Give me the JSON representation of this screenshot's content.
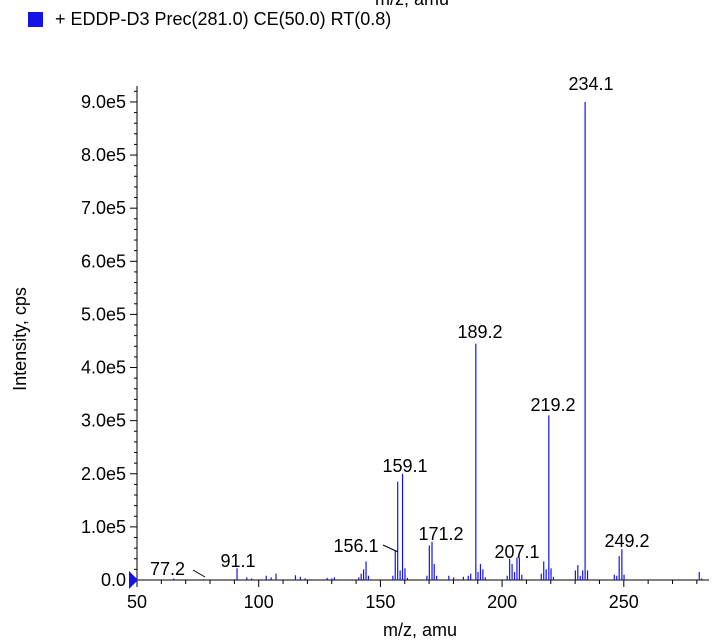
{
  "top_axis_label_fragment": "m/z, amu",
  "legend": {
    "label": "+ EDDP-D3 Prec(281.0) CE(50.0) RT(0.8)",
    "color": "#1414e6"
  },
  "chart_data": {
    "type": "bar",
    "xlabel": "m/z, amu",
    "ylabel": "Intensity, cps",
    "xlim": [
      50,
      285
    ],
    "ylim": [
      0,
      930000
    ],
    "xticks": [
      50,
      100,
      150,
      200,
      250
    ],
    "xtick_labels": [
      "50",
      "100",
      "150",
      "200",
      "250"
    ],
    "yticks": [
      0,
      100000,
      200000,
      300000,
      400000,
      500000,
      600000,
      700000,
      800000,
      900000
    ],
    "ytick_labels": [
      "0.0",
      "1.0e5",
      "2.0e5",
      "3.0e5",
      "4.0e5",
      "5.0e5",
      "6.0e5",
      "7.0e5",
      "8.0e5",
      "9.0e5"
    ],
    "series": [
      {
        "color": "#1414e6",
        "x": [
          65.1,
          77.2,
          91.1,
          95.1,
          97.1,
          103.1,
          105.1,
          107.1,
          115.1,
          117.1,
          119.1,
          128.1,
          130.1,
          131.1,
          141.1,
          142.1,
          143.1,
          144.1,
          145.1,
          155.1,
          156.1,
          157.1,
          158.1,
          159.1,
          160.1,
          161.1,
          169.1,
          170.1,
          171.2,
          172.1,
          173.1,
          178.1,
          180.1,
          184.1,
          186.1,
          187.1,
          189.2,
          190.1,
          191.1,
          192.1,
          193.1,
          202.1,
          203.1,
          204.1,
          205.1,
          206.1,
          207.1,
          208.1,
          216.1,
          217.1,
          218.1,
          219.2,
          220.1,
          221.1,
          230.1,
          231.1,
          232.1,
          233.1,
          234.1,
          235.1,
          246.1,
          247.1,
          248.1,
          249.2,
          250.1,
          281.0,
          282.0
        ],
        "values": [
          3000,
          1500,
          22000,
          5000,
          3000,
          8000,
          5000,
          12000,
          9000,
          6000,
          3000,
          4000,
          3000,
          5000,
          5000,
          12000,
          20000,
          35000,
          8000,
          8000,
          55000,
          185000,
          18000,
          200000,
          22000,
          4000,
          8000,
          65000,
          72000,
          30000,
          8000,
          8000,
          5000,
          6000,
          8000,
          12000,
          445000,
          15000,
          30000,
          20000,
          5000,
          8000,
          40000,
          30000,
          15000,
          42000,
          42000,
          10000,
          12000,
          35000,
          20000,
          310000,
          22000,
          6000,
          18000,
          28000,
          8000,
          18000,
          900000,
          18000,
          10000,
          8000,
          45000,
          58000,
          10000,
          15000,
          3000
        ]
      }
    ],
    "peak_labels": [
      "77.2",
      "91.1",
      "156.1",
      "159.1",
      "171.2",
      "189.2",
      "207.1",
      "219.2",
      "234.1",
      "249.2"
    ],
    "precursor_marker": 50
  }
}
